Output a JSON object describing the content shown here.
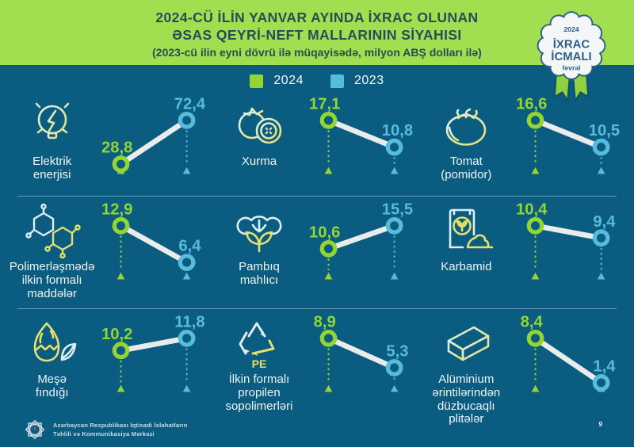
{
  "header": {
    "title_line1": "2024-CÜ İLİN YANVAR AYINDA İXRAC OLUNAN",
    "title_line2": "ƏSAS QEYRİ-NEFT MALLARININ SİYAHISI",
    "subtitle": "(2023-cü ilin eyni dövrü ilə müqayisədə, milyon ABŞ dolları ilə)"
  },
  "badge": {
    "year": "2024",
    "line1": "İXRAC",
    "line2": "İCMALI",
    "month": "fevral"
  },
  "legend": [
    {
      "label": "2024",
      "color": "#93d633"
    },
    {
      "label": "2023",
      "color": "#57bbdc"
    }
  ],
  "colors": {
    "green": "#93d633",
    "blue": "#57bbdc",
    "connector": "#e9eceb",
    "background": "#0a5c81"
  },
  "items": [
    {
      "icon": "lightbulb-icon",
      "label": "Elektrik\nenerjisi",
      "value_2024": 28.8,
      "value_2023": 72.4,
      "display_2024": "28,8",
      "display_2023": "72,4"
    },
    {
      "icon": "persimmon-icon",
      "label": "Xurma",
      "value_2024": 17.1,
      "value_2023": 10.8,
      "display_2024": "17,1",
      "display_2023": "10,8"
    },
    {
      "icon": "tomato-icon",
      "label": "Tomat\n(pomidor)",
      "value_2024": 16.6,
      "value_2023": 10.5,
      "display_2024": "16,6",
      "display_2023": "10,5"
    },
    {
      "icon": "molecule-icon",
      "label": "Polimerləşmədə\nilkin formalı\nmaddələr",
      "value_2024": 12.9,
      "value_2023": 6.4,
      "display_2024": "12,9",
      "display_2023": "6,4"
    },
    {
      "icon": "cotton-icon",
      "label": "Pambıq\nmahlıcı",
      "value_2024": 10.6,
      "value_2023": 15.5,
      "display_2024": "10,6",
      "display_2023": "15,5"
    },
    {
      "icon": "fertilizer-bag-icon",
      "label": "Karbamid",
      "value_2024": 10.4,
      "value_2023": 9.4,
      "display_2024": "10,4",
      "display_2023": "9,4"
    },
    {
      "icon": "hazelnut-icon",
      "label": "Meşə\nfındığı",
      "value_2024": 10.2,
      "value_2023": 11.8,
      "display_2024": "10,2",
      "display_2023": "11,8"
    },
    {
      "icon": "recycle-icon",
      "label": "İlkin formalı\npropilen\nsopolimerləri",
      "icon_text": "PE",
      "value_2024": 8.9,
      "value_2023": 5.3,
      "display_2024": "8,9",
      "display_2023": "5,3"
    },
    {
      "icon": "aluminum-slab-icon",
      "label": "Alüminium\nərintilərindən\ndüzbucaqlı\nplitələr",
      "value_2024": 8.4,
      "value_2023": 1.4,
      "display_2024": "8,4",
      "display_2023": "1,4"
    }
  ],
  "footer": {
    "org_line1": "Azərbaycan Respublikası İqtisadi İslahatların",
    "org_line2": "Təhlili və Kommunikasiya Mərkəzi",
    "page": "9"
  },
  "chart_data": {
    "type": "line",
    "title": "2024-cü ilin yanvar ayında ixrac olunan əsas qeyri-neft mallarının siyahısı",
    "subtitle": "2023-cü ilin eyni dövrü ilə müqayisədə, milyon ABŞ dolları ilə",
    "categories": [
      "Elektrik enerjisi",
      "Xurma",
      "Tomat (pomidor)",
      "Polimerləşmədə ilkin formalı maddələr",
      "Pambıq mahlıcı",
      "Karbamid",
      "Meşə fındığı",
      "İlkin formalı propilen sopolimerləri",
      "Alüminium ərintilərindən düzbucaqlı plitələr"
    ],
    "series": [
      {
        "name": "2024",
        "values": [
          28.8,
          17.1,
          16.6,
          12.9,
          10.6,
          10.4,
          10.2,
          8.9,
          8.4
        ]
      },
      {
        "name": "2023",
        "values": [
          72.4,
          10.8,
          10.5,
          6.4,
          15.5,
          9.4,
          11.8,
          5.3,
          1.4
        ]
      }
    ],
    "unit": "milyon ABŞ dolları",
    "legend_position": "top"
  }
}
